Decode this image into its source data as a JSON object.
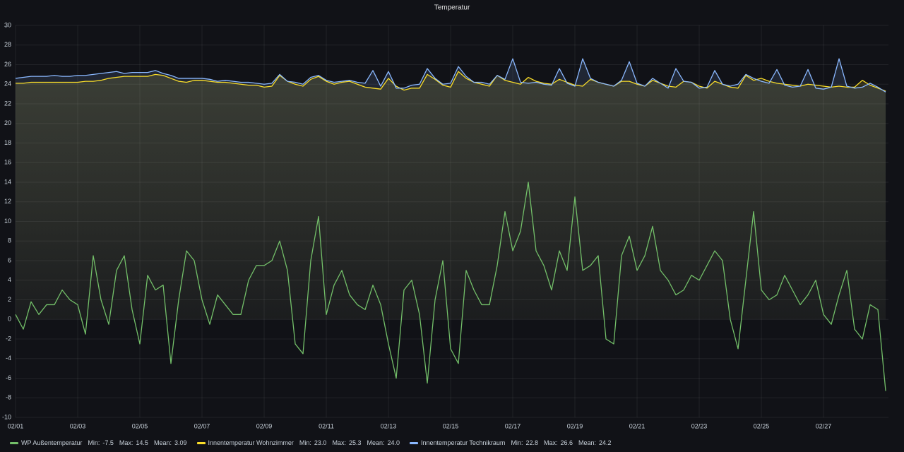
{
  "chart_data": {
    "type": "line",
    "title": "Temperatur",
    "x": [
      1,
      1.25,
      1.5,
      1.75,
      2,
      2.25,
      2.5,
      2.75,
      3,
      3.25,
      3.5,
      3.75,
      4,
      4.25,
      4.5,
      4.75,
      5,
      5.25,
      5.5,
      5.75,
      6,
      6.25,
      6.5,
      6.75,
      7,
      7.25,
      7.5,
      7.75,
      8,
      8.25,
      8.5,
      8.75,
      9,
      9.25,
      9.5,
      9.75,
      10,
      10.25,
      10.5,
      10.75,
      11,
      11.25,
      11.5,
      11.75,
      12,
      12.25,
      12.5,
      12.75,
      13,
      13.25,
      13.5,
      13.75,
      14,
      14.25,
      14.5,
      14.75,
      15,
      15.25,
      15.5,
      15.75,
      16,
      16.25,
      16.5,
      16.75,
      17,
      17.25,
      17.5,
      17.75,
      18,
      18.25,
      18.5,
      18.75,
      19,
      19.25,
      19.5,
      19.75,
      20,
      20.25,
      20.5,
      20.75,
      21,
      21.25,
      21.5,
      21.75,
      22,
      22.25,
      22.5,
      22.75,
      23,
      23.25,
      23.5,
      23.75,
      24,
      24.25,
      24.5,
      24.75,
      25,
      25.25,
      25.5,
      25.75,
      26,
      26.25,
      26.5,
      26.75,
      27,
      27.25,
      27.5,
      27.75,
      28,
      28.25,
      28.5,
      28.75,
      29
    ],
    "series": [
      {
        "name": "WP Außentemperatur",
        "color": "#73bf69",
        "fill": false,
        "stats": [
          {
            "label": "Min:",
            "value": "-7.5"
          },
          {
            "label": "Max:",
            "value": "14.5"
          },
          {
            "label": "Mean:",
            "value": "3.09"
          }
        ],
        "values": [
          0.5,
          -1,
          1.8,
          0.5,
          1.5,
          1.5,
          3,
          2,
          1.5,
          -1.5,
          6.5,
          2,
          -0.5,
          5,
          6.5,
          1,
          -2.5,
          4.5,
          3,
          3.5,
          -4.5,
          2,
          7,
          6,
          2,
          -0.5,
          2.5,
          1.5,
          0.5,
          0.5,
          4,
          5.5,
          5.5,
          6,
          8,
          5,
          -2.5,
          -3.5,
          6,
          10.5,
          0.5,
          3.5,
          5,
          2.5,
          1.5,
          1,
          3.5,
          1.5,
          -2.5,
          -6,
          3,
          4,
          0.5,
          -6.5,
          2,
          6,
          -3,
          -4.5,
          5,
          3,
          1.5,
          1.5,
          5.5,
          11,
          7,
          9,
          14,
          7,
          5.5,
          3,
          7,
          5,
          12.5,
          5,
          5.5,
          6.5,
          -2,
          -2.5,
          6.5,
          8.5,
          5,
          6.5,
          9.5,
          5,
          4,
          2.5,
          3,
          4.5,
          4,
          5.5,
          7,
          6,
          0,
          -3,
          4,
          11,
          3,
          2,
          2.5,
          4.5,
          3,
          1.5,
          2.5,
          4,
          0.5,
          -0.5,
          2.5,
          5,
          -1,
          -2,
          1.5,
          1,
          -7.3
        ]
      },
      {
        "name": "Innentemperatur Wohnzimmer",
        "color": "#fade2a",
        "fill": true,
        "stats": [
          {
            "label": "Min:",
            "value": "23.0"
          },
          {
            "label": "Max:",
            "value": "25.3"
          },
          {
            "label": "Mean:",
            "value": "24.0"
          }
        ],
        "values": [
          24.1,
          24.1,
          24.2,
          24.2,
          24.2,
          24.2,
          24.2,
          24.2,
          24.2,
          24.3,
          24.3,
          24.4,
          24.6,
          24.7,
          24.8,
          24.8,
          24.8,
          24.8,
          25.0,
          24.9,
          24.6,
          24.3,
          24.2,
          24.4,
          24.4,
          24.3,
          24.2,
          24.2,
          24.1,
          24.0,
          23.9,
          23.9,
          23.7,
          23.8,
          24.9,
          24.3,
          24.0,
          23.8,
          24.5,
          24.8,
          24.3,
          24.0,
          24.2,
          24.3,
          24.0,
          23.7,
          23.6,
          23.5,
          24.6,
          23.8,
          23.4,
          23.6,
          23.6,
          25.0,
          24.5,
          23.9,
          23.7,
          25.3,
          24.6,
          24.2,
          24.0,
          23.8,
          24.9,
          24.4,
          24.2,
          24.0,
          24.7,
          24.3,
          24.1,
          24.0,
          24.5,
          24.2,
          23.9,
          23.8,
          24.5,
          24.2,
          24.0,
          23.8,
          24.3,
          24.3,
          24.0,
          23.8,
          24.4,
          24.1,
          23.8,
          23.7,
          24.3,
          24.2,
          23.8,
          23.6,
          24.3,
          24.0,
          23.7,
          23.6,
          24.9,
          24.4,
          24.6,
          24.3,
          24.1,
          24.0,
          23.9,
          23.8,
          24.0,
          23.9,
          23.8,
          23.7,
          23.8,
          23.7,
          23.7,
          24.4,
          23.9,
          23.6,
          23.3
        ]
      },
      {
        "name": "Innentemperatur Technikraum",
        "color": "#8ab8ff",
        "fill": true,
        "stats": [
          {
            "label": "Min:",
            "value": "22.8"
          },
          {
            "label": "Max:",
            "value": "26.6"
          },
          {
            "label": "Mean:",
            "value": "24.2"
          }
        ],
        "values": [
          24.6,
          24.7,
          24.8,
          24.8,
          24.8,
          24.9,
          24.8,
          24.8,
          24.9,
          24.9,
          25.0,
          25.1,
          25.2,
          25.3,
          25.1,
          25.2,
          25.2,
          25.2,
          25.4,
          25.1,
          24.9,
          24.6,
          24.6,
          24.6,
          24.6,
          24.5,
          24.3,
          24.4,
          24.3,
          24.2,
          24.2,
          24.1,
          24.0,
          24.1,
          25.0,
          24.3,
          24.2,
          24.0,
          24.7,
          24.9,
          24.4,
          24.2,
          24.3,
          24.4,
          24.2,
          24.1,
          25.4,
          23.8,
          25.3,
          23.6,
          23.6,
          23.9,
          24.0,
          25.6,
          24.6,
          24.0,
          24.1,
          25.8,
          24.8,
          24.2,
          24.2,
          24.0,
          24.9,
          24.5,
          26.6,
          24.2,
          24.1,
          24.2,
          24.0,
          23.9,
          25.6,
          24.1,
          23.8,
          26.6,
          24.6,
          24.2,
          24.0,
          23.8,
          24.4,
          26.3,
          24.1,
          23.8,
          24.6,
          24.1,
          23.6,
          25.6,
          24.3,
          24.2,
          23.6,
          23.7,
          25.4,
          24.0,
          23.8,
          24.0,
          25.0,
          24.6,
          24.3,
          24.1,
          25.5,
          23.9,
          23.7,
          23.8,
          25.5,
          23.6,
          23.5,
          23.7,
          26.6,
          23.8,
          23.6,
          23.7,
          24.1,
          23.7,
          23.2
        ]
      }
    ],
    "xlim": [
      1,
      29.09
    ],
    "xticks": [
      {
        "value": 1,
        "label": "02/01"
      },
      {
        "value": 3,
        "label": "02/03"
      },
      {
        "value": 5,
        "label": "02/05"
      },
      {
        "value": 7,
        "label": "02/07"
      },
      {
        "value": 9,
        "label": "02/09"
      },
      {
        "value": 11,
        "label": "02/11"
      },
      {
        "value": 13,
        "label": "02/13"
      },
      {
        "value": 15,
        "label": "02/15"
      },
      {
        "value": 17,
        "label": "02/17"
      },
      {
        "value": 19,
        "label": "02/19"
      },
      {
        "value": 21,
        "label": "02/21"
      },
      {
        "value": 23,
        "label": "02/23"
      },
      {
        "value": 25,
        "label": "02/25"
      },
      {
        "value": 27,
        "label": "02/27"
      }
    ],
    "ylim": [
      -10,
      30
    ],
    "yticks": [
      -10,
      -8,
      -6,
      -4,
      -2,
      0,
      2,
      4,
      6,
      8,
      10,
      12,
      14,
      16,
      18,
      20,
      22,
      24,
      26,
      28,
      30
    ],
    "grid": true
  }
}
